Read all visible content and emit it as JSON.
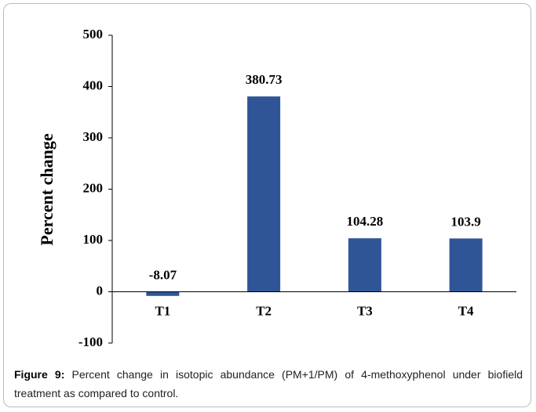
{
  "chart_data": {
    "type": "bar",
    "y_label": "Percent change",
    "categories": [
      "T1",
      "T2",
      "T3",
      "T4"
    ],
    "values": [
      -8.07,
      380.73,
      104.28,
      103.9
    ],
    "color": "#2f5597",
    "ylim": [
      -100,
      500
    ],
    "yticks": [
      -100,
      0,
      100,
      200,
      300,
      400,
      500
    ],
    "grid": false,
    "figure_label": "Figure 9:",
    "caption": "Percent change in isotopic abundance (PM+1/PM) of 4-methoxyphenol under biofield treatment as compared to control."
  }
}
